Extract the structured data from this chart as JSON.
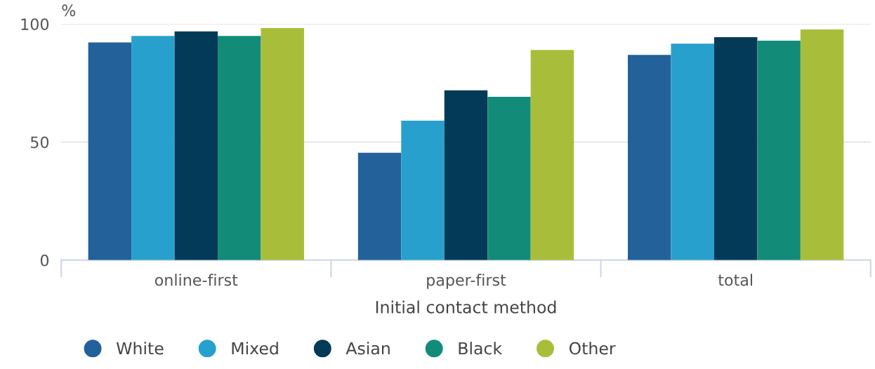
{
  "chart_data": {
    "type": "bar",
    "xlabel": "Initial contact method",
    "ylabel": "%",
    "categories": [
      "online-first",
      "paper-first",
      "total"
    ],
    "series": [
      {
        "name": "White",
        "color": "#22619a",
        "values": [
          92.2,
          45.5,
          86.9
        ]
      },
      {
        "name": "Mixed",
        "color": "#28a0cd",
        "values": [
          94.9,
          59.1,
          91.7
        ]
      },
      {
        "name": "Asian",
        "color": "#033a57",
        "values": [
          96.9,
          71.9,
          94.4
        ]
      },
      {
        "name": "Black",
        "color": "#128b79",
        "values": [
          94.9,
          69.2,
          92.9
        ]
      },
      {
        "name": "Other",
        "color": "#a8be3a",
        "values": [
          98.3,
          89.0,
          97.7
        ]
      }
    ],
    "ylim": [
      0,
      100
    ],
    "yticks": [
      0,
      50,
      100
    ],
    "grid": "y",
    "legend": "bottom"
  }
}
